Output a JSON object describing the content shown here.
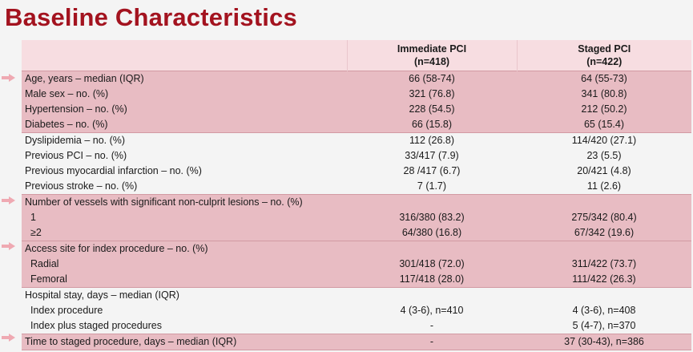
{
  "title": "Baseline Characteristics",
  "columns": {
    "immediate": {
      "name": "Immediate PCI",
      "n": "(n=418)"
    },
    "staged": {
      "name": "Staged PCI",
      "n": "(n=422)"
    }
  },
  "rows": [
    {
      "label": "Age, years – median (IQR)",
      "immediate": "66 (58-74)",
      "staged": "64 (55-73)"
    },
    {
      "label": "Male sex – no. (%)",
      "immediate": "321 (76.8)",
      "staged": "341 (80.8)"
    },
    {
      "label": "Hypertension – no. (%)",
      "immediate": "228 (54.5)",
      "staged": "212 (50.2)"
    },
    {
      "label": "Diabetes – no. (%)",
      "immediate": "66 (15.8)",
      "staged": "65 (15.4)"
    },
    {
      "label": "Dyslipidemia – no. (%)",
      "immediate": "112 (26.8)",
      "staged": "114/420 (27.1)"
    },
    {
      "label": "Previous PCI – no. (%)",
      "immediate": "33/417 (7.9)",
      "staged": "23 (5.5)"
    },
    {
      "label": "Previous myocardial infarction – no. (%)",
      "immediate": "28 /417 (6.7)",
      "staged": "20/421 (4.8)"
    },
    {
      "label": "Previous stroke – no. (%)",
      "immediate": "7 (1.7)",
      "staged": "11 (2.6)"
    },
    {
      "label": "Number of vessels with significant non-culprit lesions – no. (%)",
      "immediate": "",
      "staged": ""
    },
    {
      "label": "1",
      "immediate": "316/380 (83.2)",
      "staged": "275/342 (80.4)"
    },
    {
      "label": "≥2",
      "immediate": "64/380 (16.8)",
      "staged": "67/342 (19.6)"
    },
    {
      "label": "Access site for index procedure – no. (%)",
      "immediate": "",
      "staged": ""
    },
    {
      "label": "Radial",
      "immediate": "301/418 (72.0)",
      "staged": "311/422 (73.7)"
    },
    {
      "label": "Femoral",
      "immediate": "117/418 (28.0)",
      "staged": "111/422 (26.3)"
    },
    {
      "label": "Hospital stay, days – median (IQR)",
      "immediate": "",
      "staged": ""
    },
    {
      "label": "Index procedure",
      "immediate": "4 (3-6), n=410",
      "staged": "4 (3-6), n=408"
    },
    {
      "label": "Index plus staged procedures",
      "immediate": "-",
      "staged": "5 (4-7), n=370"
    },
    {
      "label": "Time to staged procedure, days – median (IQR)",
      "immediate": "-",
      "staged": "37 (30-43), n=386"
    }
  ],
  "arrow_icon": "right-arrow-icon",
  "colors": {
    "title": "#a3131f",
    "highlight_row": "#e8bcc3",
    "header_bg": "#f7dde1",
    "arrow": "#efa9b2"
  }
}
